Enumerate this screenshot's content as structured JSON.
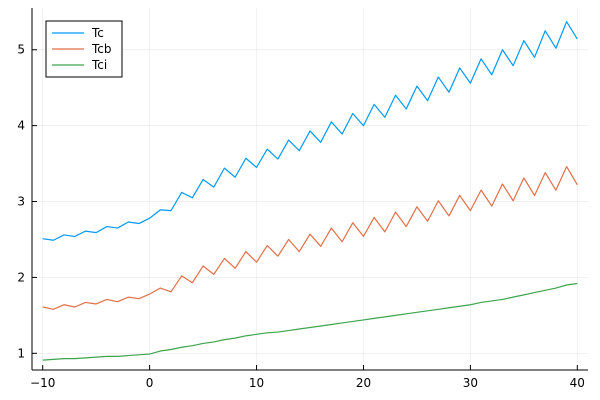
{
  "chart_data": {
    "type": "line",
    "title": "",
    "xlabel": "",
    "ylabel": "",
    "xlim": [
      -11,
      41
    ],
    "ylim": [
      0.78,
      5.55
    ],
    "xticks": [
      -10,
      0,
      10,
      20,
      30,
      40
    ],
    "yticks": [
      1,
      2,
      3,
      4,
      5
    ],
    "grid": true,
    "legend_position": "top-left",
    "x": [
      -10,
      -9,
      -8,
      -7,
      -6,
      -5,
      -4,
      -3,
      -2,
      -1,
      0,
      1,
      2,
      3,
      4,
      5,
      6,
      7,
      8,
      9,
      10,
      11,
      12,
      13,
      14,
      15,
      16,
      17,
      18,
      19,
      20,
      21,
      22,
      23,
      24,
      25,
      26,
      27,
      28,
      29,
      30,
      31,
      32,
      33,
      34,
      35,
      36,
      37,
      38,
      39,
      40
    ],
    "series": [
      {
        "name": "Tc",
        "color": "#009AFA",
        "values": [
          2.51,
          2.49,
          2.56,
          2.54,
          2.61,
          2.59,
          2.67,
          2.65,
          2.73,
          2.71,
          2.78,
          2.89,
          2.88,
          3.12,
          3.05,
          3.29,
          3.19,
          3.44,
          3.32,
          3.57,
          3.45,
          3.69,
          3.56,
          3.81,
          3.67,
          3.93,
          3.78,
          4.05,
          3.89,
          4.16,
          4.0,
          4.28,
          4.11,
          4.4,
          4.22,
          4.52,
          4.33,
          4.64,
          4.44,
          4.76,
          4.56,
          4.88,
          4.67,
          5.0,
          4.79,
          5.12,
          4.9,
          5.25,
          5.02,
          5.37,
          5.14
        ]
      },
      {
        "name": "Tcb",
        "color": "#E36F47",
        "values": [
          1.61,
          1.58,
          1.64,
          1.61,
          1.67,
          1.65,
          1.71,
          1.68,
          1.74,
          1.72,
          1.78,
          1.86,
          1.81,
          2.02,
          1.93,
          2.15,
          2.04,
          2.25,
          2.12,
          2.34,
          2.2,
          2.42,
          2.28,
          2.5,
          2.34,
          2.57,
          2.41,
          2.65,
          2.47,
          2.72,
          2.54,
          2.79,
          2.6,
          2.86,
          2.67,
          2.93,
          2.74,
          3.01,
          2.81,
          3.08,
          2.88,
          3.15,
          2.94,
          3.23,
          3.01,
          3.31,
          3.08,
          3.38,
          3.15,
          3.46,
          3.22
        ]
      },
      {
        "name": "Tci",
        "color": "#3DA44D",
        "values": [
          0.91,
          0.92,
          0.93,
          0.93,
          0.94,
          0.95,
          0.96,
          0.96,
          0.97,
          0.98,
          0.99,
          1.03,
          1.05,
          1.08,
          1.1,
          1.13,
          1.15,
          1.18,
          1.2,
          1.23,
          1.25,
          1.27,
          1.28,
          1.3,
          1.32,
          1.34,
          1.36,
          1.38,
          1.4,
          1.42,
          1.44,
          1.46,
          1.48,
          1.5,
          1.52,
          1.54,
          1.56,
          1.58,
          1.6,
          1.62,
          1.64,
          1.67,
          1.69,
          1.71,
          1.74,
          1.77,
          1.8,
          1.83,
          1.86,
          1.9,
          1.92
        ]
      }
    ]
  }
}
